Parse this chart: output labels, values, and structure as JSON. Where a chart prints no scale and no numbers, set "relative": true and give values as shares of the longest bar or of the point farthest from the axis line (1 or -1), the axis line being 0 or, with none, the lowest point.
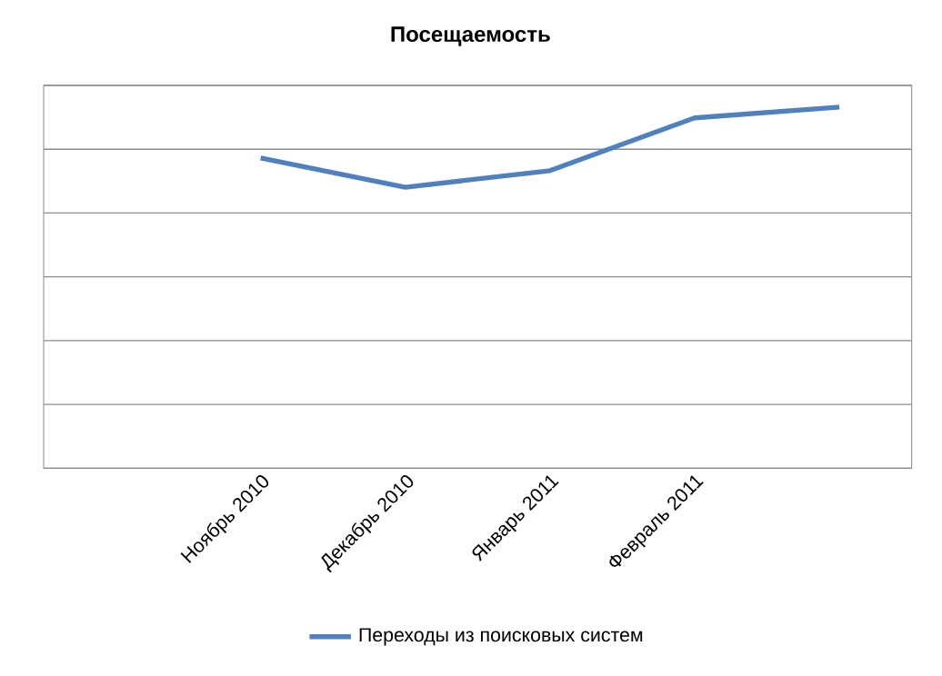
{
  "chart_data": {
    "type": "line",
    "title": "Посещаемость",
    "categories": [
      null,
      "Ноябрь 2010",
      "Декабрь 2010",
      "Январь 2011",
      "Февраль 2011",
      null
    ],
    "relative": true,
    "grid": "y",
    "legend": "bottom",
    "marker": "none",
    "line_style": "solid",
    "series": [
      {
        "name": "Переходы из поисковых систем",
        "color": "#4f81bd",
        "values": [
          null,
          0.859,
          0.778,
          0.824,
          0.97,
          1
        ]
      }
    ]
  }
}
